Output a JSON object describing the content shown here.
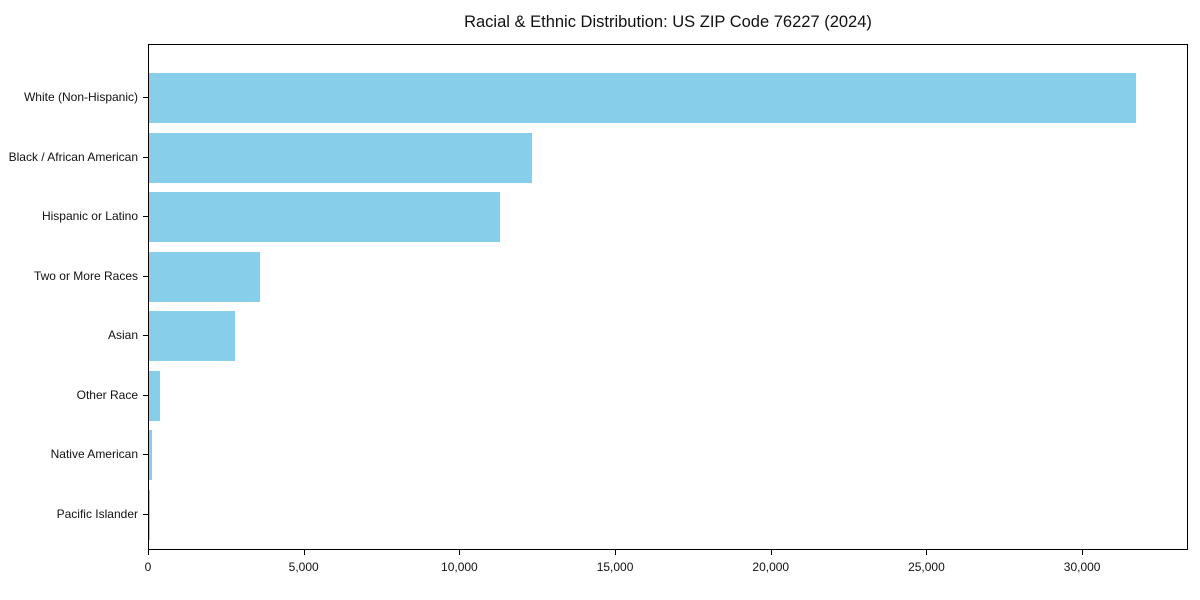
{
  "figure": {
    "title": "Racial & Ethnic Distribution: US ZIP Code 76227 (2024)"
  },
  "chart_data": {
    "type": "bar",
    "orientation": "horizontal",
    "title": "Racial & Ethnic Distribution: US ZIP Code 76227 (2024)",
    "categories": [
      "White (Non-Hispanic)",
      "Black / African American",
      "Hispanic or Latino",
      "Two or More Races",
      "Asian",
      "Other Race",
      "Native American",
      "Pacific Islander"
    ],
    "values": [
      31700,
      12300,
      11280,
      3580,
      2770,
      350,
      100,
      20
    ],
    "xlabel": "",
    "ylabel": "",
    "xlim": [
      0,
      33400
    ],
    "x_ticks": [
      0,
      5000,
      10000,
      15000,
      20000,
      25000,
      30000
    ],
    "x_tick_labels": [
      "0",
      "5,000",
      "10,000",
      "15,000",
      "20,000",
      "25,000",
      "30,000"
    ],
    "bar_color": "#87CEEB",
    "grid": false,
    "legend_position": "none"
  }
}
